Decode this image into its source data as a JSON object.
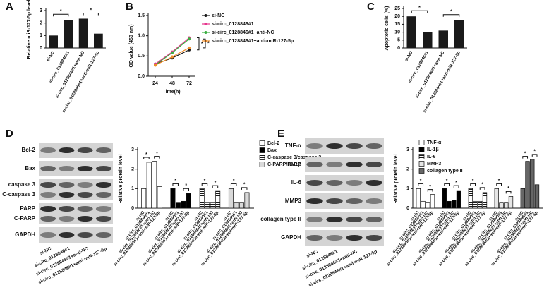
{
  "chart_data": [
    {
      "panel_label": "A",
      "type": "bar",
      "y_label": "Relative miR-127-5p level",
      "categories": [
        "si-NC",
        "si-circ_0128846#1",
        "si-circ_0128846#1+anti-NC",
        "si-circ_0128846#1+anti-miR-127-5p"
      ],
      "values": [
        1.0,
        2.25,
        2.35,
        1.15
      ],
      "color": "#1a1a1a",
      "ylim": [
        0,
        3
      ],
      "yticks": [
        0,
        1,
        2,
        3
      ],
      "significance_mark": "*"
    },
    {
      "panel_label": "B",
      "type": "line",
      "x_label": "Time(h)",
      "y_label": "OD value (450 nm)",
      "x": [
        24,
        48,
        72
      ],
      "xlim": [
        14,
        80
      ],
      "xticks": [
        24,
        48,
        72
      ],
      "ylim": [
        0,
        1.5
      ],
      "yticks": [
        {
          "value": 0,
          "label": "0.0"
        },
        {
          "value": 0.5,
          "label": "0.5"
        },
        {
          "value": 1,
          "label": "1.0"
        },
        {
          "value": 1.5,
          "label": "1.5"
        }
      ],
      "series": [
        {
          "name": "si-NC",
          "color": "#1a1a1a",
          "values": [
            0.3,
            0.45,
            0.65
          ]
        },
        {
          "name": "si-circ_0128846#1",
          "color": "#e6348c",
          "values": [
            0.3,
            0.6,
            0.95
          ]
        },
        {
          "name": "si-circ_0128846#1+anti-NC",
          "color": "#3cb043",
          "values": [
            0.28,
            0.58,
            0.92
          ]
        },
        {
          "name": "si-circ_0128846#1+anti-miR-127-5p",
          "color": "#f08c28",
          "values": [
            0.27,
            0.48,
            0.7
          ]
        }
      ],
      "legend": "right",
      "significance_mark": "*"
    },
    {
      "panel_label": "C",
      "type": "bar",
      "y_label": "Apoptotic cells (%)",
      "categories": [
        "si-NC",
        "si-circ_0128846#1",
        "si-circ_0128846#1+anti-NC",
        "si-circ_0128846#1+anti-miR-127-5p"
      ],
      "values": [
        20,
        10,
        11,
        17.5
      ],
      "color": "#1a1a1a",
      "ylim": [
        0,
        25
      ],
      "yticks": [
        0,
        5,
        10,
        15,
        20,
        25
      ],
      "significance_mark": "*"
    },
    {
      "panel_label": "D",
      "type": "grouped_bar",
      "y_label": "Relative protein level",
      "categories": [
        "si-NC",
        "si-circ_0128846#1",
        "si-circ_0128846#1+anti-NC",
        "si-circ_0128846#1+anti-miR-127-5p"
      ],
      "series": [
        {
          "name": "Bcl-2",
          "color": "#ffffff",
          "values": [
            1.0,
            2.35,
            2.4,
            1.1
          ]
        },
        {
          "name": "Bax",
          "color": "#000000",
          "values": [
            1.0,
            0.3,
            0.35,
            0.75
          ]
        },
        {
          "name": "C-caspase 3/caspase 3",
          "color": "#ffffff",
          "pattern": "hatch",
          "values": [
            1.0,
            0.3,
            0.3,
            0.9
          ]
        },
        {
          "name": "C-PARP/PARP",
          "color": "#d9d9d9",
          "values": [
            1.0,
            0.3,
            0.3,
            0.8
          ]
        }
      ],
      "ylim": [
        0,
        3
      ],
      "yticks": [
        0,
        1,
        2,
        3
      ],
      "legend": "upper right",
      "significance_mark": "*"
    },
    {
      "panel_label": "E",
      "type": "grouped_bar",
      "y_label": "Relative protein level",
      "categories": [
        "si-NC",
        "si-circ_0128846#1",
        "si-circ_0128846#1+anti-NC",
        "si-circ_0128846#1+anti-miR-127-5p"
      ],
      "series": [
        {
          "name": "TNF-α",
          "color": "#ffffff",
          "values": [
            1.0,
            0.35,
            0.3,
            0.7
          ]
        },
        {
          "name": "IL-1β",
          "color": "#000000",
          "values": [
            1.0,
            0.35,
            0.4,
            0.9
          ]
        },
        {
          "name": "IL-6",
          "color": "#ffffff",
          "pattern": "hatch",
          "values": [
            1.0,
            0.35,
            0.35,
            0.8
          ]
        },
        {
          "name": "MMP3",
          "color": "#e6e6e6",
          "values": [
            1.0,
            0.3,
            0.3,
            0.6
          ]
        },
        {
          "name": "collagen type II",
          "color": "#666666",
          "values": [
            1.0,
            2.4,
            2.5,
            1.2
          ]
        }
      ],
      "ylim": [
        0,
        3
      ],
      "yticks": [
        0,
        1,
        2,
        3
      ],
      "legend": "upper left",
      "significance_mark": "*"
    }
  ],
  "blots": [
    {
      "rows": [
        [
          "Bcl-2"
        ],
        [
          "Bax"
        ],
        [
          "caspase 3",
          "C-caspase 3"
        ],
        [
          "PARP",
          "C-PARP"
        ],
        [
          "GAPDH"
        ]
      ]
    },
    {
      "rows": [
        [
          "TNF-α"
        ],
        [
          "IL-1β"
        ],
        [
          "IL-6"
        ],
        [
          "MMP3"
        ],
        [
          "collagen type II"
        ],
        [
          "GAPDH"
        ]
      ]
    }
  ]
}
